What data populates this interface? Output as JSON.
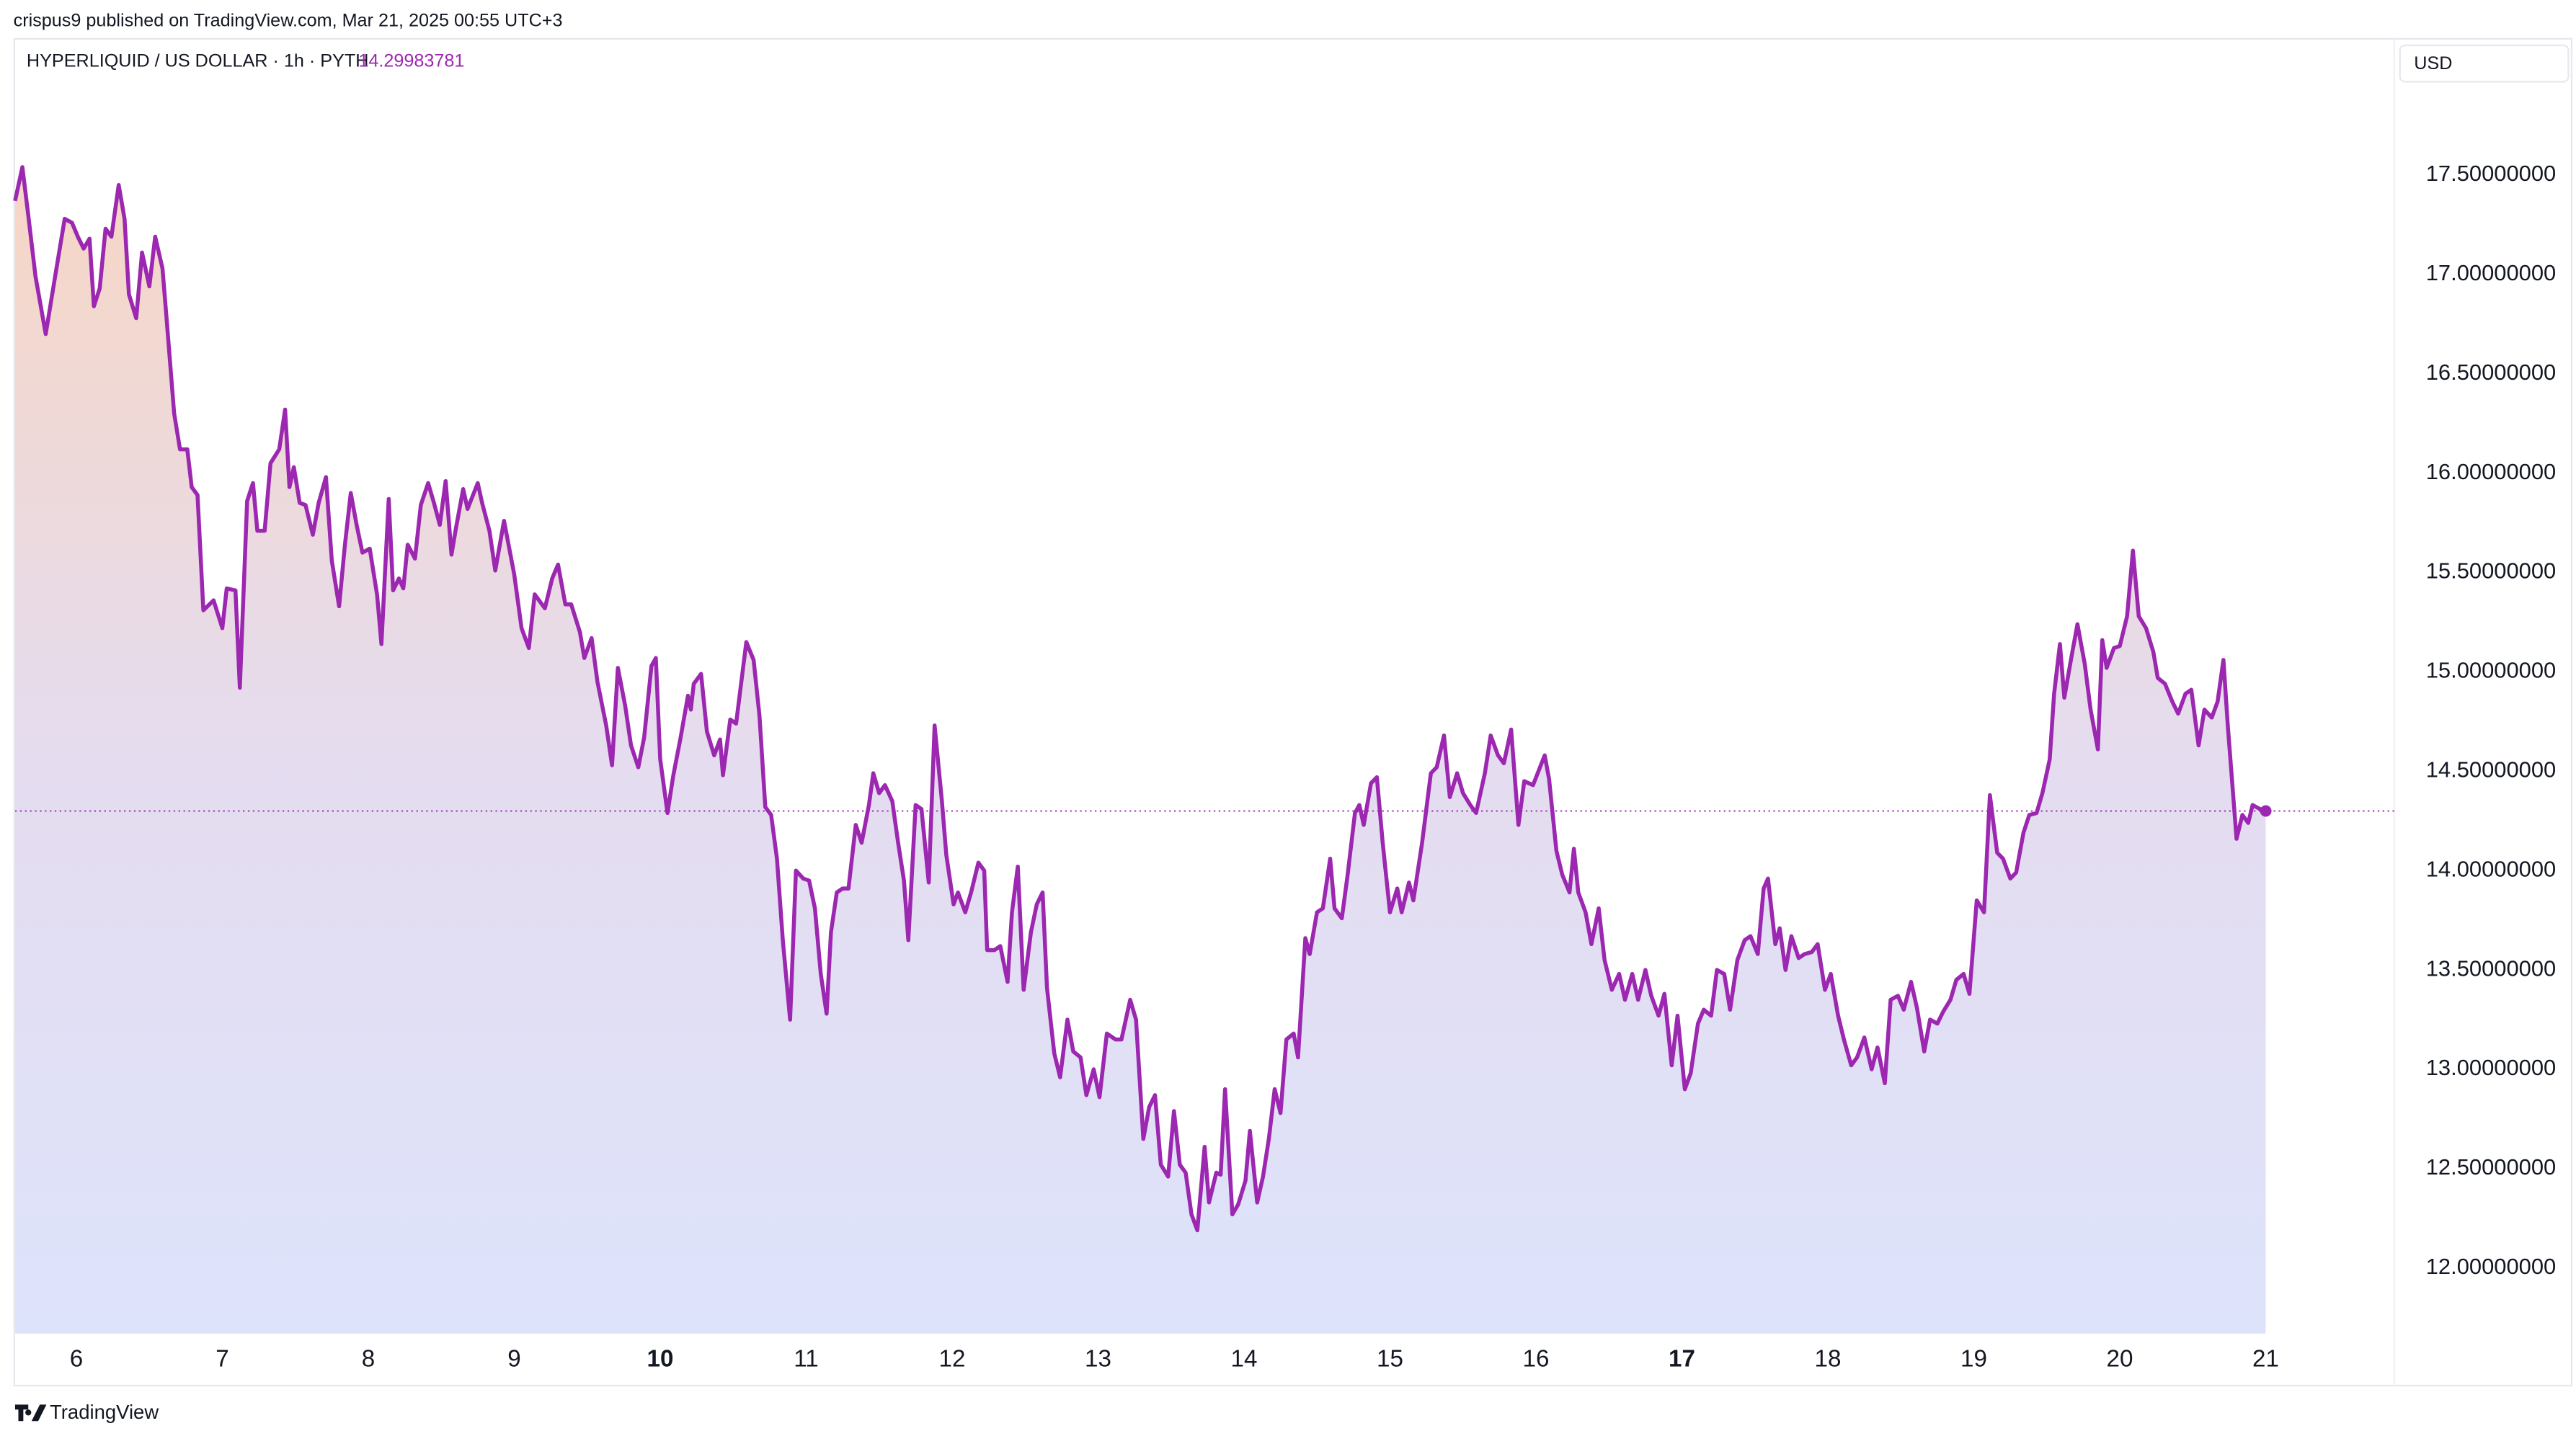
{
  "header": {
    "publisher": "crispus9 published on TradingView.com, Mar 21, 2025 00:55 UTC+3",
    "symbol": "HYPERLIQUID / US DOLLAR · 1h · PYTH",
    "last_price": 14.29983781,
    "currency": "USD",
    "brand": "TradingView"
  },
  "chart_data": {
    "type": "area",
    "color": "#9c27b0",
    "x": [
      5.58,
      5.63,
      5.67,
      5.72,
      5.79,
      5.85,
      5.92,
      5.97,
      6.01,
      6.05,
      6.09,
      6.12,
      6.16,
      6.2,
      6.24,
      6.29,
      6.33,
      6.36,
      6.41,
      6.45,
      6.5,
      6.54,
      6.59,
      6.62,
      6.67,
      6.71,
      6.76,
      6.79,
      6.83,
      6.87,
      6.94,
      7.0,
      7.03,
      7.09,
      7.12,
      7.17,
      7.21,
      7.24,
      7.29,
      7.33,
      7.39,
      7.43,
      7.46,
      7.49,
      7.53,
      7.57,
      7.62,
      7.66,
      7.71,
      7.75,
      7.8,
      7.84,
      7.88,
      7.92,
      7.96,
      8.01,
      8.06,
      8.09,
      8.14,
      8.17,
      8.21,
      8.24,
      8.27,
      8.32,
      8.36,
      8.41,
      8.45,
      8.49,
      8.53,
      8.57,
      8.6,
      8.65,
      8.68,
      8.75,
      8.78,
      8.83,
      8.87,
      8.93,
      9.0,
      9.05,
      9.1,
      9.14,
      9.21,
      9.26,
      9.3,
      9.35,
      9.39,
      9.45,
      9.48,
      9.53,
      9.57,
      9.63,
      9.67,
      9.71,
      9.76,
      9.8,
      9.85,
      9.89,
      9.94,
      9.97,
      10.0,
      10.05,
      10.09,
      10.14,
      10.19,
      10.21,
      10.23,
      10.28,
      10.32,
      10.37,
      10.41,
      10.43,
      10.48,
      10.52,
      10.59,
      10.64,
      10.68,
      10.72,
      10.76,
      10.8,
      10.84,
      10.89,
      10.93,
      10.98,
      11.02,
      11.06,
      11.1,
      11.14,
      11.17,
      11.21,
      11.25,
      11.29,
      11.34,
      11.38,
      11.43,
      11.46,
      11.5,
      11.54,
      11.59,
      11.63,
      11.67,
      11.7,
      11.75,
      11.79,
      11.84,
      11.88,
      11.93,
      11.96,
      12.01,
      12.04,
      12.09,
      12.13,
      12.18,
      12.22,
      12.24,
      12.29,
      12.33,
      12.38,
      12.41,
      12.45,
      12.49,
      12.54,
      12.58,
      12.62,
      12.65,
      12.7,
      12.74,
      12.79,
      12.83,
      12.88,
      12.92,
      12.97,
      13.01,
      13.06,
      13.12,
      13.16,
      13.22,
      13.26,
      13.31,
      13.35,
      13.39,
      13.43,
      13.48,
      13.52,
      13.56,
      13.6,
      13.64,
      13.68,
      13.73,
      13.76,
      13.81,
      13.84,
      13.87,
      13.92,
      13.96,
      14.01,
      14.04,
      14.09,
      14.13,
      14.17,
      14.21,
      14.25,
      14.29,
      14.34,
      14.37,
      14.42,
      14.45,
      14.5,
      14.54,
      14.59,
      14.62,
      14.67,
      14.71,
      14.76,
      14.79,
      14.82,
      14.87,
      14.91,
      14.95,
      15.0,
      15.05,
      15.08,
      15.13,
      15.16,
      15.22,
      15.28,
      15.32,
      15.37,
      15.41,
      15.46,
      15.5,
      15.55,
      15.59,
      15.65,
      15.69,
      15.74,
      15.78,
      15.83,
      15.88,
      15.92,
      15.98,
      16.06,
      16.09,
      16.14,
      16.18,
      16.23,
      16.26,
      16.29,
      16.34,
      16.38,
      16.43,
      16.47,
      16.52,
      16.57,
      16.61,
      16.66,
      16.7,
      16.75,
      16.79,
      16.84,
      16.88,
      16.93,
      16.97,
      17.02,
      17.06,
      17.11,
      17.15,
      17.2,
      17.24,
      17.29,
      17.33,
      17.38,
      17.43,
      17.47,
      17.52,
      17.56,
      17.59,
      17.64,
      17.67,
      17.71,
      17.75,
      17.8,
      17.84,
      17.89,
      17.93,
      17.98,
      18.02,
      18.07,
      18.11,
      18.16,
      18.2,
      18.25,
      18.3,
      18.34,
      18.39,
      18.43,
      18.48,
      18.52,
      18.57,
      18.61,
      18.66,
      18.7,
      18.75,
      18.79,
      18.84,
      18.88,
      18.93,
      18.97,
      19.02,
      19.07,
      19.11,
      19.16,
      19.2,
      19.25,
      19.29,
      19.34,
      19.38,
      19.43,
      19.47,
      19.52,
      19.55,
      19.59,
      19.62,
      19.67,
      19.71,
      19.76,
      19.8,
      19.85,
      19.88,
      19.91,
      19.96,
      20.0,
      20.05,
      20.09,
      20.13,
      20.18,
      20.23,
      20.26,
      20.31,
      20.36,
      20.4,
      20.45,
      20.49,
      20.54,
      20.58,
      20.63,
      20.67,
      20.71,
      20.74,
      20.8,
      20.84,
      20.88,
      20.91,
      20.96,
      21.0
    ],
    "values": [
      17.37,
      17.54,
      17.3,
      16.99,
      16.7,
      16.97,
      17.28,
      17.26,
      17.19,
      17.13,
      17.18,
      16.84,
      16.93,
      17.23,
      17.19,
      17.45,
      17.28,
      16.9,
      16.78,
      17.11,
      16.94,
      17.19,
      17.03,
      16.76,
      16.3,
      16.12,
      16.12,
      15.93,
      15.89,
      15.31,
      15.36,
      15.22,
      15.42,
      15.41,
      14.92,
      15.86,
      15.95,
      15.71,
      15.71,
      16.05,
      16.12,
      16.32,
      15.93,
      16.03,
      15.85,
      15.84,
      15.69,
      15.85,
      15.98,
      15.56,
      15.33,
      15.64,
      15.9,
      15.74,
      15.6,
      15.62,
      15.39,
      15.14,
      15.87,
      15.41,
      15.47,
      15.42,
      15.64,
      15.57,
      15.84,
      15.95,
      15.85,
      15.74,
      15.96,
      15.59,
      15.72,
      15.92,
      15.82,
      15.95,
      15.85,
      15.71,
      15.51,
      15.76,
      15.49,
      15.22,
      15.12,
      15.39,
      15.32,
      15.47,
      15.54,
      15.34,
      15.34,
      15.2,
      15.07,
      15.17,
      14.95,
      14.73,
      14.53,
      15.02,
      14.83,
      14.63,
      14.52,
      14.67,
      15.03,
      15.07,
      14.56,
      14.29,
      14.48,
      14.67,
      14.88,
      14.81,
      14.94,
      14.99,
      14.7,
      14.58,
      14.66,
      14.48,
      14.76,
      14.74,
      15.15,
      15.06,
      14.78,
      14.32,
      14.28,
      14.06,
      13.65,
      13.25,
      14.0,
      13.96,
      13.95,
      13.81,
      13.48,
      13.28,
      13.69,
      13.89,
      13.91,
      13.91,
      14.23,
      14.14,
      14.33,
      14.49,
      14.39,
      14.43,
      14.35,
      14.14,
      13.95,
      13.65,
      14.33,
      14.31,
      13.94,
      14.73,
      14.35,
      14.08,
      13.83,
      13.89,
      13.79,
      13.89,
      14.04,
      14.0,
      13.6,
      13.6,
      13.62,
      13.44,
      13.79,
      14.02,
      13.4,
      13.69,
      13.83,
      13.89,
      13.41,
      13.08,
      12.96,
      13.25,
      13.09,
      13.06,
      12.87,
      13.0,
      12.86,
      13.18,
      13.15,
      13.15,
      13.35,
      13.25,
      12.65,
      12.81,
      12.87,
      12.52,
      12.46,
      12.79,
      12.52,
      12.48,
      12.27,
      12.19,
      12.61,
      12.33,
      12.48,
      12.47,
      12.9,
      12.27,
      12.32,
      12.44,
      12.69,
      12.33,
      12.46,
      12.65,
      12.9,
      12.78,
      13.15,
      13.18,
      13.06,
      13.66,
      13.58,
      13.79,
      13.81,
      14.06,
      13.81,
      13.76,
      13.98,
      14.29,
      14.33,
      14.23,
      14.44,
      14.47,
      14.14,
      13.79,
      13.91,
      13.79,
      13.94,
      13.85,
      14.14,
      14.49,
      14.52,
      14.68,
      14.37,
      14.49,
      14.39,
      14.33,
      14.29,
      14.49,
      14.68,
      14.58,
      14.54,
      14.71,
      14.23,
      14.45,
      14.43,
      14.58,
      14.46,
      14.1,
      13.98,
      13.89,
      14.11,
      13.89,
      13.79,
      13.63,
      13.81,
      13.55,
      13.4,
      13.48,
      13.35,
      13.48,
      13.35,
      13.5,
      13.37,
      13.27,
      13.38,
      13.02,
      13.27,
      12.9,
      12.98,
      13.23,
      13.3,
      13.27,
      13.5,
      13.48,
      13.3,
      13.55,
      13.65,
      13.67,
      13.58,
      13.91,
      13.96,
      13.63,
      13.71,
      13.5,
      13.67,
      13.56,
      13.58,
      13.59,
      13.63,
      13.4,
      13.48,
      13.27,
      13.15,
      13.02,
      13.06,
      13.16,
      13.0,
      13.11,
      12.93,
      13.35,
      13.37,
      13.3,
      13.44,
      13.31,
      13.09,
      13.25,
      13.23,
      13.29,
      13.35,
      13.45,
      13.48,
      13.38,
      13.85,
      13.79,
      14.38,
      14.09,
      14.06,
      13.96,
      13.99,
      14.19,
      14.28,
      14.29,
      14.39,
      14.56,
      14.89,
      15.14,
      14.87,
      15.08,
      15.24,
      15.04,
      14.81,
      14.61,
      15.16,
      15.02,
      15.12,
      15.13,
      15.28,
      15.61,
      15.28,
      15.22,
      15.1,
      14.97,
      14.94,
      14.85,
      14.79,
      14.89,
      14.91,
      14.63,
      14.81,
      14.77,
      14.85,
      15.06,
      14.73,
      14.16,
      14.28,
      14.24,
      14.33,
      14.31,
      14.3
    ],
    "xlim": [
      5.58,
      21.88
    ],
    "ylim": [
      11.67,
      18.19
    ],
    "xticks": [
      6,
      7,
      8,
      9,
      10,
      11,
      12,
      13,
      14,
      15,
      16,
      17,
      18,
      19,
      20,
      21
    ],
    "bold_xticks": [
      10,
      17
    ],
    "yticks": [
      {
        "value": 12.0,
        "label": "12.00000000"
      },
      {
        "value": 12.5,
        "label": "12.50000000"
      },
      {
        "value": 13.0,
        "label": "13.00000000"
      },
      {
        "value": 13.5,
        "label": "13.50000000"
      },
      {
        "value": 14.0,
        "label": "14.00000000"
      },
      {
        "value": 14.5,
        "label": "14.50000000"
      },
      {
        "value": 15.0,
        "label": "15.00000000"
      },
      {
        "value": 15.5,
        "label": "15.50000000"
      },
      {
        "value": 16.0,
        "label": "16.00000000"
      },
      {
        "value": 16.5,
        "label": "16.50000000"
      },
      {
        "value": 17.0,
        "label": "17.00000000"
      },
      {
        "value": 17.5,
        "label": "17.50000000"
      }
    ]
  }
}
